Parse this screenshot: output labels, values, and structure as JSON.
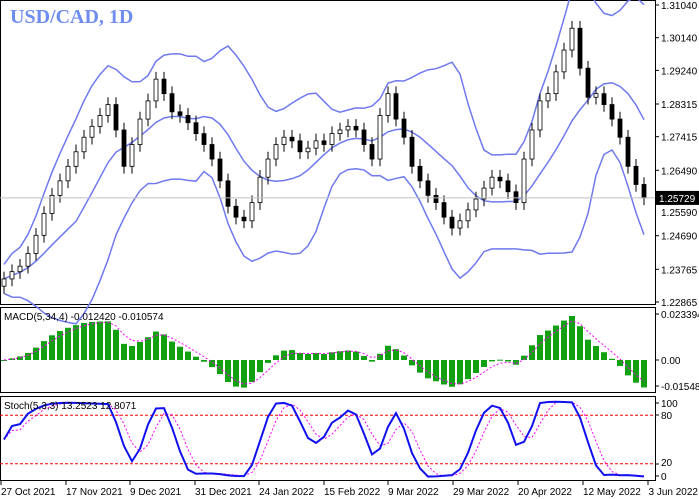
{
  "title": "USD/CAD, 1D",
  "current_price": "1.25729",
  "colors": {
    "bands": "#6e79f0",
    "macd_hist": "#10a010",
    "macd_signal": "#ff00ff",
    "stoch_main": "#1010f0",
    "stoch_signal": "#ff00ff",
    "levels": "#ff0000",
    "price_line": "#c0c0c0"
  },
  "chart_data": [
    {
      "type": "candlestick",
      "name": "USD/CAD, 1D",
      "overlay": "Bollinger Bands",
      "y_ticks": [
        "1.31040",
        "1.30140",
        "1.29240",
        "1.28315",
        "1.27415",
        "1.26490",
        "1.25590",
        "1.24690",
        "1.23765",
        "1.22865"
      ],
      "ylim": [
        1.22865,
        1.3104
      ],
      "closes": [
        1.235,
        1.237,
        1.2385,
        1.242,
        1.247,
        1.253,
        1.258,
        1.262,
        1.266,
        1.27,
        1.274,
        1.277,
        1.28,
        1.283,
        1.276,
        1.266,
        1.272,
        1.279,
        1.284,
        1.29,
        1.286,
        1.281,
        1.28,
        1.278,
        1.275,
        1.272,
        1.268,
        1.262,
        1.255,
        1.252,
        1.251,
        1.256,
        1.263,
        1.268,
        1.272,
        1.274,
        1.273,
        1.27,
        1.271,
        1.273,
        1.272,
        1.275,
        1.276,
        1.277,
        1.276,
        1.272,
        1.268,
        1.28,
        1.286,
        1.279,
        1.274,
        1.266,
        1.262,
        1.258,
        1.256,
        1.252,
        1.249,
        1.251,
        1.254,
        1.257,
        1.26,
        1.263,
        1.262,
        1.259,
        1.256,
        1.268,
        1.276,
        1.284,
        1.286,
        1.292,
        1.298,
        1.304,
        1.293,
        1.285,
        1.286,
        1.283,
        1.279,
        1.274,
        1.266,
        1.261,
        1.2573
      ],
      "x_ticks": [
        "27 Oct 2021",
        "17 Nov 2021",
        "9 Dec 2021",
        "31 Dec 2021",
        "24 Jan 2022",
        "15 Feb 2022",
        "9 Mar 2022",
        "29 Mar 2022",
        "20 Apr 2022",
        "12 May 2022",
        "3 Jun 2022"
      ]
    },
    {
      "type": "bar",
      "label": "MACD(5,34,4) -0.012420 -0.010574",
      "y_ticks": [
        "0.023394",
        "0.00",
        "-0.015483"
      ],
      "ylim": [
        -0.015483,
        0.023394
      ]
    },
    {
      "type": "line",
      "label": "Stoch(5,3,3) 13.2523 12.8071",
      "y_ticks": [
        "100",
        "80",
        "20",
        "0"
      ],
      "levels": [
        80,
        20
      ],
      "ylim": [
        0,
        100
      ]
    }
  ]
}
